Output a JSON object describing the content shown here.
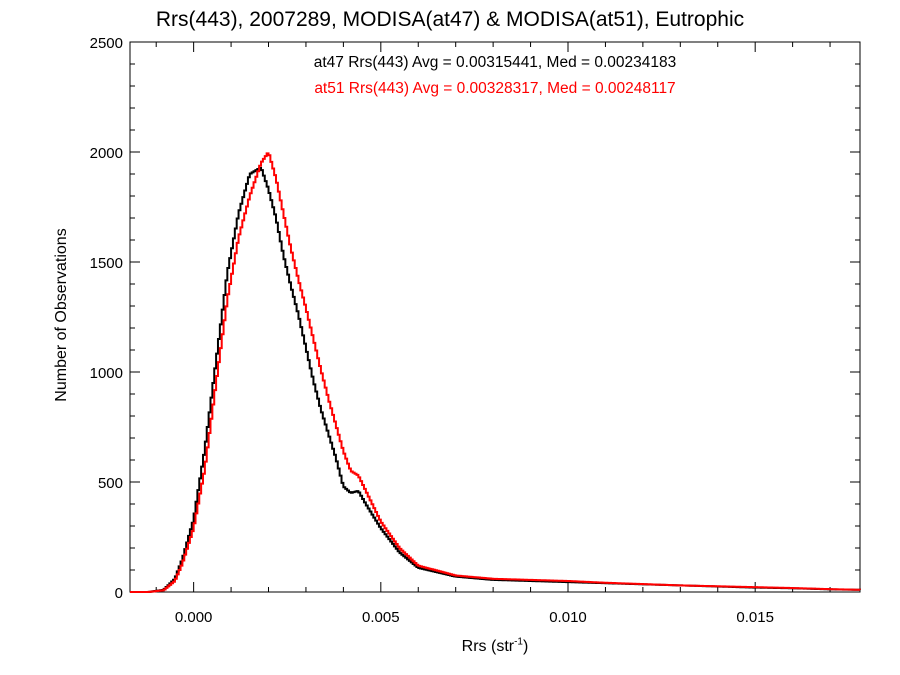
{
  "chart_data": {
    "type": "line",
    "title": "Rrs(443), 2007289, MODISA(at47) & MODISA(at51), Eutrophic",
    "xlabel": "Rrs (str",
    "xlabel_superscript": "-1",
    "xlabel_close": ")",
    "ylabel": "Number of Observations",
    "xlim": [
      -0.0017,
      0.0178
    ],
    "ylim": [
      0,
      2500
    ],
    "xticks": [
      0.0,
      0.005,
      0.01,
      0.015
    ],
    "xtick_labels": [
      "0.000",
      "0.005",
      "0.010",
      "0.015"
    ],
    "yticks": [
      0,
      500,
      1000,
      1500,
      2000,
      2500
    ],
    "ytick_labels": [
      "0",
      "500",
      "1000",
      "1500",
      "2000",
      "2500"
    ],
    "grid": false,
    "annotations": [
      {
        "text": "at47 Rrs(443) Avg = 0.00315441, Med = 0.00234183",
        "color": "#000000"
      },
      {
        "text": "at51 Rrs(443) Avg = 0.00328317, Med = 0.00248117",
        "color": "#ff0000"
      }
    ],
    "series": [
      {
        "name": "at47",
        "color": "#000000",
        "x": [
          -0.0017,
          -0.0012,
          -0.0008,
          -0.0005,
          -0.0003,
          0.0,
          0.0003,
          0.0006,
          0.0009,
          0.0012,
          0.0015,
          0.0018,
          0.002,
          0.0022,
          0.0024,
          0.0026,
          0.0028,
          0.003,
          0.0032,
          0.0034,
          0.0036,
          0.0038,
          0.004,
          0.0042,
          0.0044,
          0.0046,
          0.005,
          0.0055,
          0.006,
          0.007,
          0.008,
          0.009,
          0.01,
          0.011,
          0.012,
          0.013,
          0.014,
          0.015,
          0.016,
          0.017,
          0.0178
        ],
        "y": [
          0,
          0,
          10,
          60,
          150,
          330,
          650,
          1050,
          1450,
          1720,
          1900,
          1930,
          1830,
          1700,
          1530,
          1390,
          1260,
          1110,
          960,
          830,
          720,
          610,
          480,
          450,
          460,
          400,
          290,
          180,
          110,
          70,
          55,
          50,
          45,
          40,
          35,
          30,
          25,
          20,
          17,
          12,
          10
        ]
      },
      {
        "name": "at51",
        "color": "#ff0000",
        "x": [
          -0.0017,
          -0.0012,
          -0.0008,
          -0.0005,
          -0.0003,
          0.0,
          0.0003,
          0.0006,
          0.0009,
          0.0012,
          0.0015,
          0.0018,
          0.002,
          0.0022,
          0.0024,
          0.0026,
          0.0028,
          0.003,
          0.0032,
          0.0034,
          0.0036,
          0.0038,
          0.004,
          0.0042,
          0.0044,
          0.0046,
          0.005,
          0.0055,
          0.006,
          0.007,
          0.008,
          0.009,
          0.01,
          0.011,
          0.012,
          0.013,
          0.014,
          0.015,
          0.016,
          0.017,
          0.0178
        ],
        "y": [
          0,
          0,
          8,
          50,
          130,
          290,
          560,
          950,
          1330,
          1610,
          1800,
          1950,
          2000,
          1880,
          1720,
          1560,
          1420,
          1290,
          1150,
          1010,
          880,
          760,
          640,
          550,
          530,
          460,
          320,
          200,
          120,
          75,
          60,
          55,
          50,
          42,
          36,
          30,
          26,
          22,
          18,
          13,
          10
        ]
      }
    ]
  }
}
